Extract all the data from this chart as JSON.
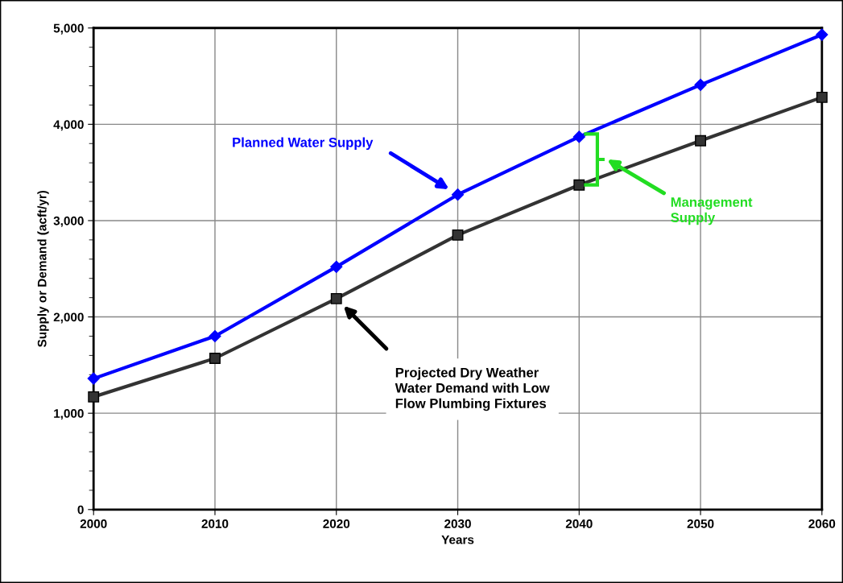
{
  "chart_data": {
    "type": "line",
    "xlabel": "Years",
    "ylabel": "Supply or Demand (acft/yr)",
    "x": [
      2000,
      2010,
      2020,
      2030,
      2040,
      2050,
      2060
    ],
    "series": [
      {
        "color": "#0000ff",
        "marker": "diamond",
        "values": [
          1360,
          1800,
          2520,
          3270,
          3870,
          4410,
          4930
        ]
      },
      {
        "color": "#333333",
        "marker": "square",
        "values": [
          1170,
          1570,
          2190,
          2850,
          3370,
          3830,
          4280
        ]
      }
    ],
    "xlim": [
      2000,
      2060
    ],
    "xticks": [
      2000,
      2010,
      2020,
      2030,
      2040,
      2050,
      2060
    ],
    "ylim": [
      0,
      5000
    ],
    "yticks": [
      {
        "value": 0,
        "label": "0"
      },
      {
        "value": 1000,
        "label": "1,000"
      },
      {
        "value": 2000,
        "label": "2,000"
      },
      {
        "value": 3000,
        "label": "3,000"
      },
      {
        "value": 4000,
        "label": "4,000"
      },
      {
        "value": 5000,
        "label": "5,000"
      }
    ],
    "grid": true,
    "line_style": "solid",
    "annotations": [
      "Planned Water Supply",
      "Projected Dry Weather\nWater Demand with Low\nFlow Plumbing Fixtures",
      "Management\nSupply"
    ]
  }
}
